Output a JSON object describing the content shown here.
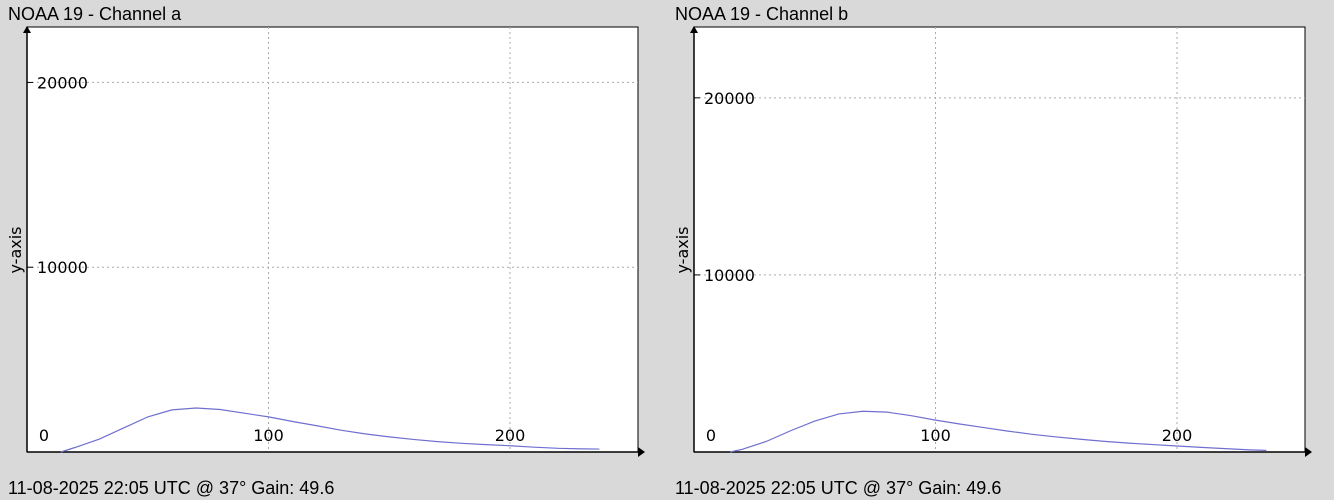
{
  "chart_data": [
    {
      "type": "line",
      "title": "NOAA 19 - Channel a",
      "footer": "11-08-2025 22:05 UTC @ 37° Gain: 49.6",
      "y_label": "y-axis",
      "x": [
        14,
        20,
        30,
        40,
        50,
        60,
        70,
        80,
        90,
        100,
        110,
        120,
        130,
        140,
        150,
        160,
        170,
        180,
        190,
        200,
        210,
        220,
        230,
        237
      ],
      "series": [
        {
          "name": "Channel a",
          "color": "#6f6fd0",
          "values": [
            0,
            250,
            700,
            1300,
            1900,
            2280,
            2380,
            2300,
            2100,
            1900,
            1650,
            1420,
            1180,
            980,
            820,
            680,
            560,
            470,
            400,
            340,
            260,
            200,
            170,
            160
          ]
        }
      ],
      "xlim": [
        0,
        253
      ],
      "ylim": [
        0,
        23000
      ],
      "xticks": [
        0,
        100,
        200
      ],
      "yticks": [
        10000,
        20000
      ],
      "grid": true
    },
    {
      "type": "line",
      "title": "NOAA 19 - Channel b",
      "footer": "11-08-2025 22:05 UTC @ 37° Gain: 49.6",
      "y_label": "y-axis",
      "x": [
        15,
        20,
        30,
        40,
        50,
        60,
        70,
        80,
        90,
        100,
        110,
        120,
        130,
        140,
        150,
        160,
        170,
        180,
        190,
        200,
        210,
        220,
        230,
        237
      ],
      "series": [
        {
          "name": "Channel b",
          "color": "#6f6fd0",
          "values": [
            0,
            150,
            600,
            1200,
            1750,
            2150,
            2300,
            2250,
            2050,
            1800,
            1580,
            1380,
            1180,
            1000,
            850,
            720,
            600,
            500,
            420,
            340,
            260,
            190,
            120,
            90
          ]
        }
      ],
      "xlim": [
        0,
        253
      ],
      "ylim": [
        0,
        24000
      ],
      "xticks": [
        0,
        100,
        200
      ],
      "yticks": [
        10000,
        20000
      ],
      "grid": true
    }
  ]
}
